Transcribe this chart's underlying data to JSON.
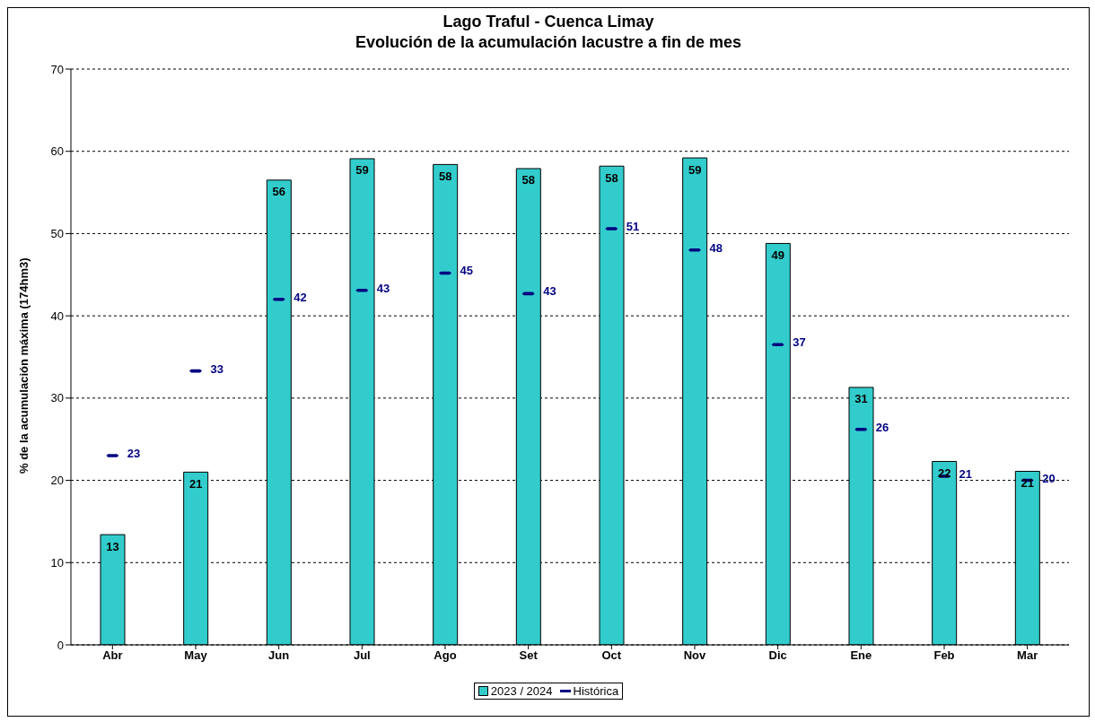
{
  "chart_data": {
    "type": "bar",
    "title": "Lago Traful - Cuenca Limay",
    "subtitle": "Evolución de la acumulación lacustre a fin de mes",
    "ylabel": "% de la acumulación máxima (174hm3)",
    "categories": [
      "Abr",
      "May",
      "Jun",
      "Jul",
      "Ago",
      "Set",
      "Oct",
      "Nov",
      "Dic",
      "Ene",
      "Feb",
      "Mar"
    ],
    "series": [
      {
        "name": "2023 / 2024",
        "color": "#33cccc",
        "values": [
          13.4,
          21,
          56.5,
          59.1,
          58.4,
          57.9,
          58.2,
          59.2,
          48.8,
          31.3,
          22.3,
          21.1
        ],
        "value_labels": [
          "13",
          "21",
          "56",
          "59",
          "58",
          "58",
          "58",
          "59",
          "49",
          "31",
          "22",
          "21"
        ]
      },
      {
        "name": "Histórica",
        "type": "scatter",
        "color": "#000080",
        "values": [
          23,
          33.3,
          42,
          43.1,
          45.2,
          42.7,
          50.6,
          48,
          36.5,
          26.2,
          20.5,
          20
        ],
        "value_labels": [
          "23",
          "33",
          "42",
          "43",
          "45",
          "43",
          "51",
          "48",
          "37",
          "26",
          "21",
          "20"
        ]
      }
    ],
    "ylim": [
      0,
      70
    ],
    "yticks": [
      0,
      10,
      20,
      30,
      40,
      50,
      60,
      70
    ],
    "grid": "y",
    "legend": "bottom"
  }
}
